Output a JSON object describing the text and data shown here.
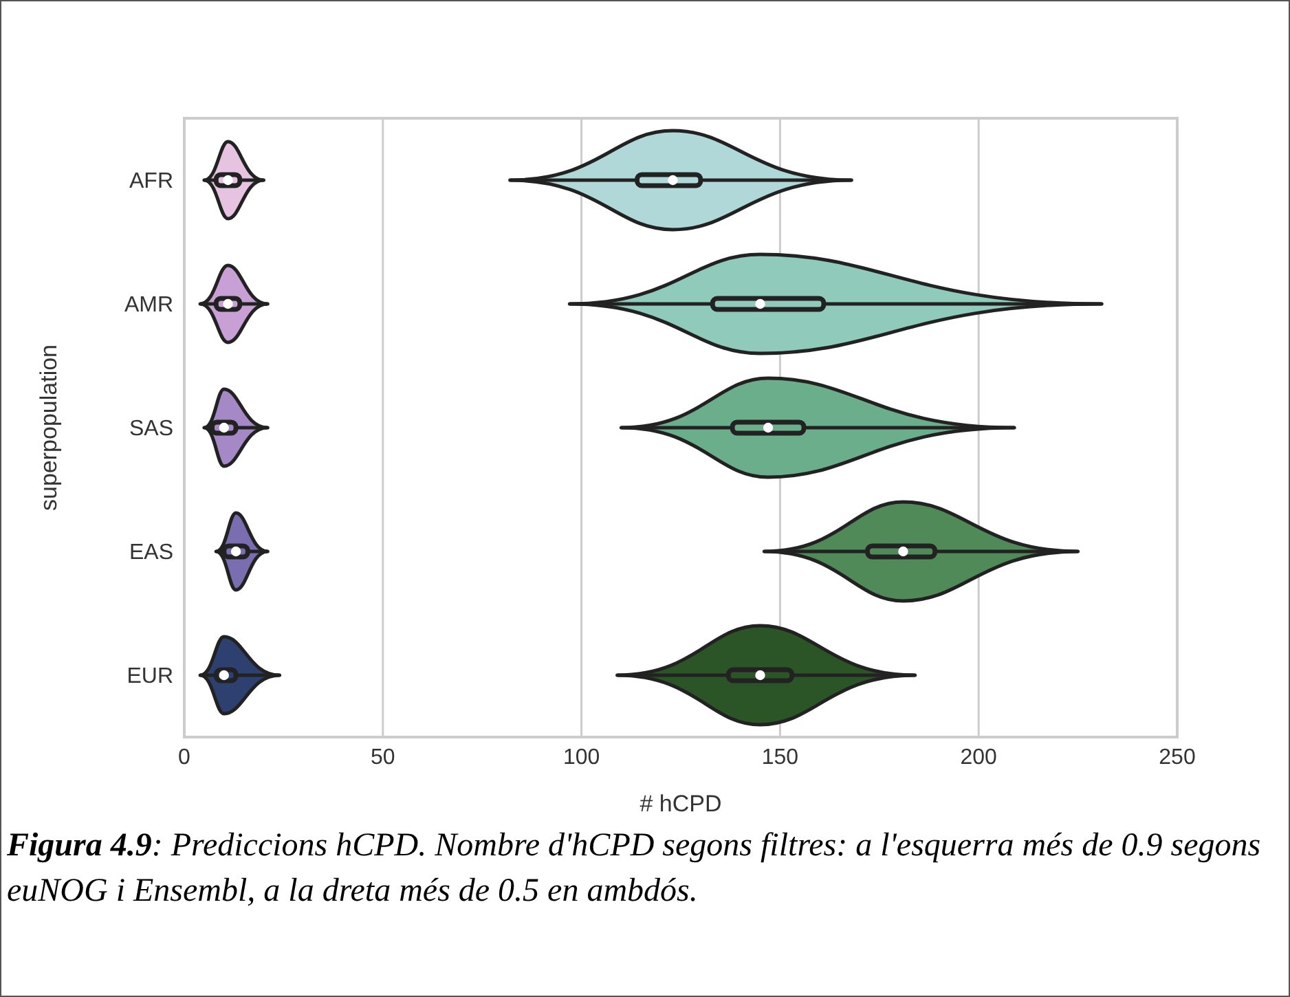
{
  "chart_data": {
    "type": "box",
    "orientation": "horizontal",
    "xlabel": "# hCPD",
    "ylabel": "superpopulation",
    "categories": [
      "AFR",
      "AMR",
      "SAS",
      "EAS",
      "EUR"
    ],
    "series": [
      {
        "colors": [
          "#e6c3e0",
          "#c9a0d6",
          "#a588c6",
          "#7a6eb0",
          "#2e4070"
        ],
        "boxes": [
          {
            "low": 5,
            "q1": 8,
            "median": 11,
            "q3": 14,
            "high": 20
          },
          {
            "low": 4,
            "q1": 8,
            "median": 11,
            "q3": 14,
            "high": 21
          },
          {
            "low": 5,
            "q1": 7,
            "median": 10,
            "q3": 13,
            "high": 21
          },
          {
            "low": 8,
            "q1": 10,
            "median": 13,
            "q3": 16,
            "high": 21
          },
          {
            "low": 4,
            "q1": 8,
            "median": 10,
            "q3": 13,
            "high": 24
          }
        ]
      },
      {
        "colors": [
          "#b0d8d8",
          "#8fcabb",
          "#6aae8c",
          "#4f8a58",
          "#2b5526"
        ],
        "boxes": [
          {
            "low": 82,
            "q1": 114,
            "median": 123,
            "q3": 130,
            "high": 168
          },
          {
            "low": 97,
            "q1": 133,
            "median": 145,
            "q3": 161,
            "high": 231
          },
          {
            "low": 110,
            "q1": 138,
            "median": 147,
            "q3": 156,
            "high": 209
          },
          {
            "low": 146,
            "q1": 172,
            "median": 181,
            "q3": 189,
            "high": 225
          },
          {
            "low": 109,
            "q1": 137,
            "median": 145,
            "q3": 153,
            "high": 184
          }
        ]
      }
    ],
    "xlim": [
      0,
      250
    ],
    "xticks": [
      0,
      50,
      100,
      150,
      200,
      250
    ],
    "grid": "x",
    "annotations": [
      "Figura 4.9",
      ": Prediccions hCPD. Nombre d'hCPD segons filtres: a l'esquerra més de 0.9 segons euNOG i Ensembl, a la dreta més de 0.5 en ambdós."
    ]
  }
}
